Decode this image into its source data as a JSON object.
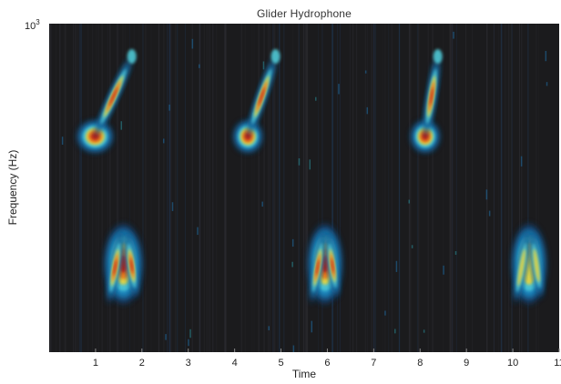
{
  "chart_data": {
    "type": "heatmap",
    "title": "Glider Hydrophone",
    "xlabel": "Time",
    "ylabel": "Frequency (Hz)",
    "xlim": [
      0,
      11
    ],
    "x_ticks": [
      "1",
      "2",
      "3",
      "4",
      "5",
      "6",
      "7",
      "8",
      "9",
      "10",
      "11"
    ],
    "y_ticks": [
      {
        "value": 1000,
        "label_base": "10",
        "label_exp": "3"
      }
    ],
    "grid": false,
    "legend": "none",
    "colormap": [
      "#1a1a1a",
      "#123e6a",
      "#1f8fc8",
      "#4fc9d6",
      "#e8d23a",
      "#e8771e",
      "#c02216"
    ],
    "calls": [
      {
        "kind": "upsweep",
        "t_start": 0.5,
        "t_end": 1.9,
        "level": 0.95
      },
      {
        "kind": "downsweep",
        "t_start": 1.1,
        "t_end": 2.1,
        "level": 0.9
      },
      {
        "kind": "upsweep",
        "t_start": 3.9,
        "t_end": 5.0,
        "level": 0.9
      },
      {
        "kind": "downsweep",
        "t_start": 5.5,
        "t_end": 6.4,
        "level": 0.85
      },
      {
        "kind": "upsweep",
        "t_start": 7.9,
        "t_end": 8.5,
        "level": 0.85
      },
      {
        "kind": "downsweep",
        "t_start": 9.9,
        "t_end": 10.8,
        "level": 0.8
      }
    ]
  }
}
